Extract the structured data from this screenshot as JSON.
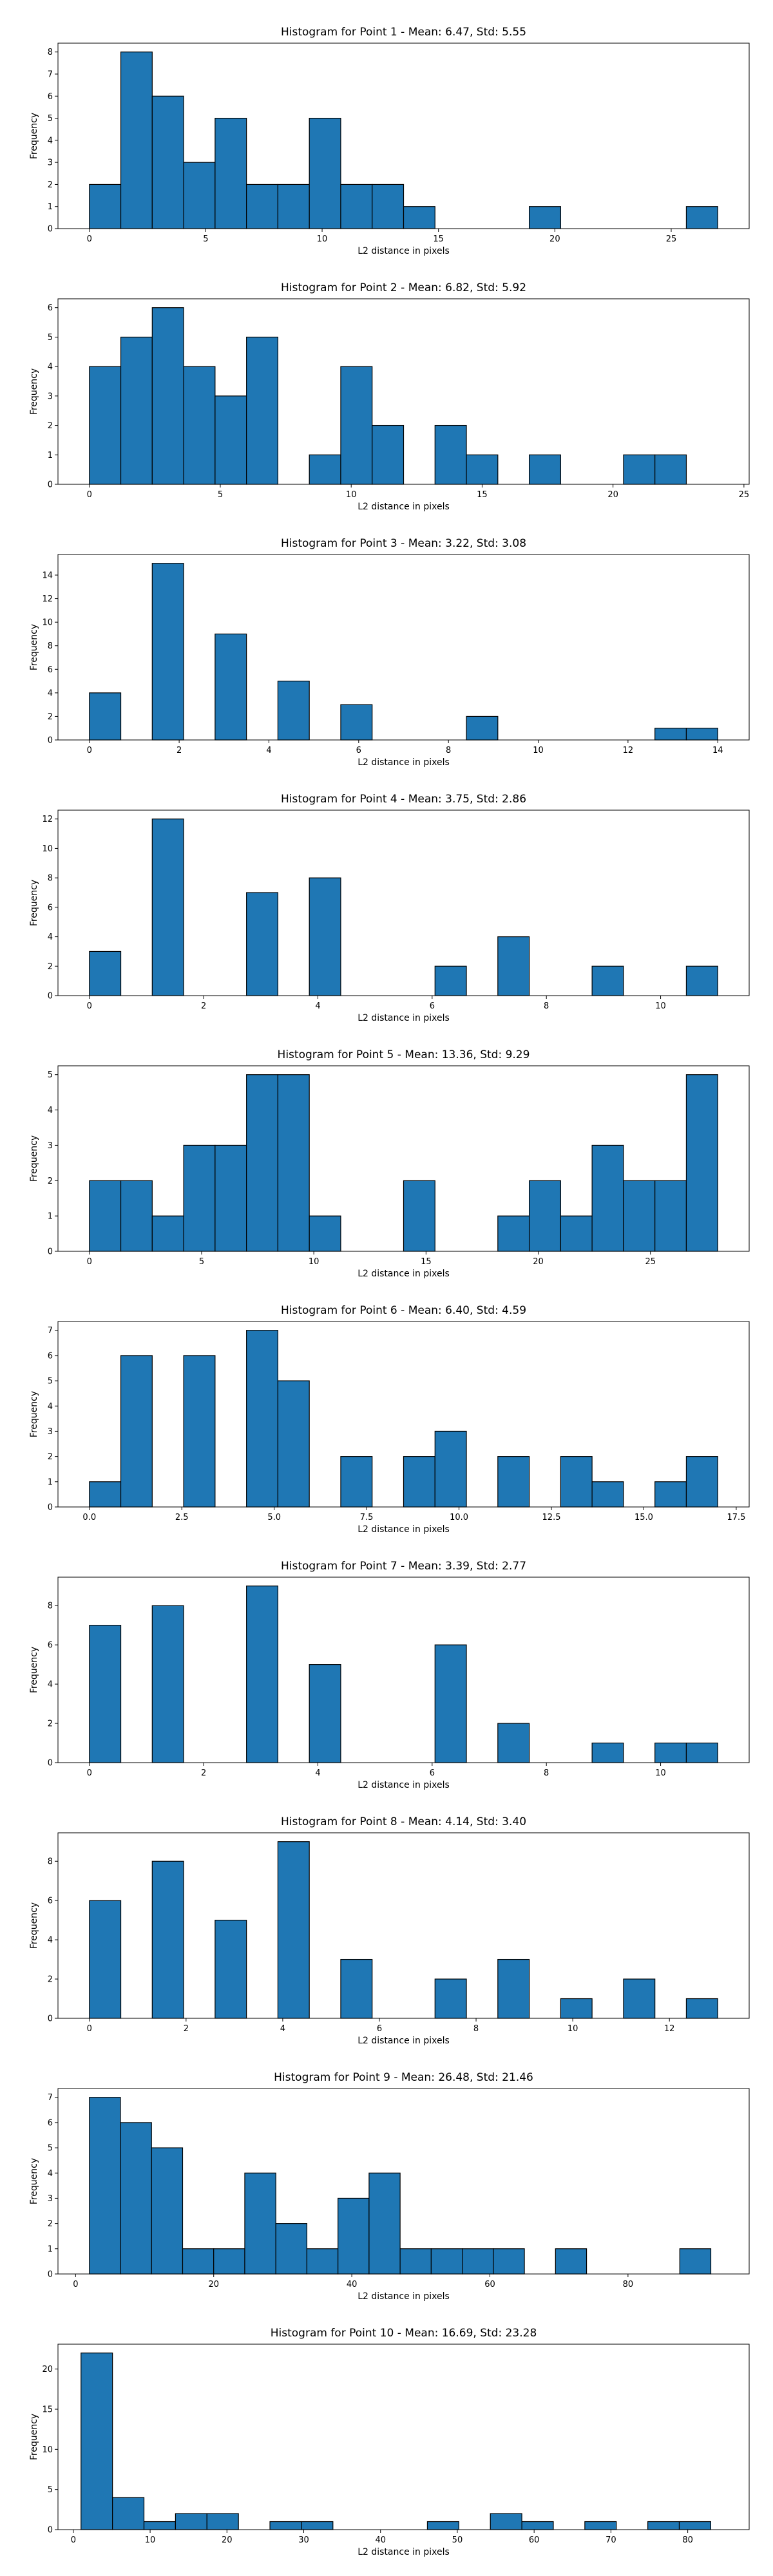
{
  "chart_data": [
    {
      "type": "bar",
      "title": "Histogram for Point 1 - Mean: 6.47, Std: 5.55",
      "xlabel": "L2 distance in pixels",
      "ylabel": "Frequency",
      "xlim": [
        -1.35,
        28.35
      ],
      "ylim": [
        0,
        8.4
      ],
      "xticks": [
        0,
        5,
        10,
        15,
        20,
        25
      ],
      "xtick_labels": [
        "0",
        "5",
        "10",
        "15",
        "20",
        "25"
      ],
      "yticks": [
        0,
        1,
        2,
        3,
        4,
        5,
        6,
        7,
        8
      ],
      "bin_edges": [
        0,
        1.35,
        2.7,
        4.05,
        5.4,
        6.75,
        8.1,
        9.45,
        10.8,
        12.15,
        13.5,
        14.85,
        16.2,
        17.55,
        18.9,
        20.25,
        21.6,
        22.95,
        24.3,
        25.65,
        27.0
      ],
      "values": [
        2,
        8,
        6,
        3,
        5,
        2,
        2,
        5,
        2,
        2,
        1,
        0,
        0,
        0,
        1,
        0,
        0,
        0,
        0,
        1
      ],
      "bar_color": "#1f77b4",
      "edge_color": "#000000",
      "grid": false
    },
    {
      "type": "bar",
      "title": "Histogram for Point 2 - Mean: 6.82, Std: 5.92",
      "xlabel": "L2 distance in pixels",
      "ylabel": "Frequency",
      "xlim": [
        -1.2,
        25.2
      ],
      "ylim": [
        0,
        6.3
      ],
      "xticks": [
        0,
        5,
        10,
        15,
        20,
        25
      ],
      "xtick_labels": [
        "0",
        "5",
        "10",
        "15",
        "20",
        "25"
      ],
      "yticks": [
        0,
        1,
        2,
        3,
        4,
        5,
        6
      ],
      "bin_edges": [
        0,
        1.2,
        2.4,
        3.6,
        4.8,
        6.0,
        7.2,
        8.4,
        9.6,
        10.8,
        12.0,
        13.2,
        14.4,
        15.6,
        16.8,
        18.0,
        19.2,
        20.4,
        21.6,
        22.8,
        24.0
      ],
      "values": [
        4,
        5,
        6,
        4,
        3,
        5,
        0,
        1,
        4,
        2,
        0,
        2,
        1,
        0,
        1,
        0,
        0,
        1,
        1,
        0
      ],
      "bar_color": "#1f77b4",
      "edge_color": "#000000",
      "grid": false
    },
    {
      "type": "bar",
      "title": "Histogram for Point 3 - Mean: 3.22, Std: 3.08",
      "xlabel": "L2 distance in pixels",
      "ylabel": "Frequency",
      "xlim": [
        -0.7,
        14.7
      ],
      "ylim": [
        0,
        15.75
      ],
      "xticks": [
        0,
        2,
        4,
        6,
        8,
        10,
        12,
        14
      ],
      "xtick_labels": [
        "0",
        "2",
        "4",
        "6",
        "8",
        "10",
        "12",
        "14"
      ],
      "yticks": [
        0,
        2,
        4,
        6,
        8,
        10,
        12,
        14
      ],
      "bin_edges": [
        0,
        0.7,
        1.4,
        2.1,
        2.8,
        3.5,
        4.2,
        4.9,
        5.6,
        6.3,
        7.0,
        7.7,
        8.4,
        9.1,
        9.8,
        10.5,
        11.2,
        11.9,
        12.6,
        13.3,
        14.0
      ],
      "values": [
        4,
        0,
        15,
        0,
        9,
        0,
        5,
        0,
        3,
        0,
        0,
        0,
        2,
        0,
        0,
        0,
        0,
        0,
        1,
        1
      ],
      "bar_color": "#1f77b4",
      "edge_color": "#000000",
      "grid": false
    },
    {
      "type": "bar",
      "title": "Histogram for Point 4 - Mean: 3.75, Std: 2.86",
      "xlabel": "L2 distance in pixels",
      "ylabel": "Frequency",
      "xlim": [
        -0.55,
        11.55
      ],
      "ylim": [
        0,
        12.6
      ],
      "xticks": [
        0,
        2,
        4,
        6,
        8,
        10
      ],
      "xtick_labels": [
        "0",
        "2",
        "4",
        "6",
        "8",
        "10"
      ],
      "yticks": [
        0,
        2,
        4,
        6,
        8,
        10,
        12
      ],
      "bin_edges": [
        0,
        0.55,
        1.1,
        1.65,
        2.2,
        2.75,
        3.3,
        3.85,
        4.4,
        4.95,
        5.5,
        6.05,
        6.6,
        7.15,
        7.7,
        8.25,
        8.8,
        9.35,
        9.9,
        10.45,
        11.0
      ],
      "values": [
        3,
        0,
        12,
        0,
        0,
        7,
        0,
        8,
        0,
        0,
        0,
        2,
        0,
        4,
        0,
        0,
        2,
        0,
        0,
        2
      ],
      "bar_color": "#1f77b4",
      "edge_color": "#000000",
      "grid": false
    },
    {
      "type": "bar",
      "title": "Histogram for Point 5 - Mean: 13.36, Std: 9.29",
      "xlabel": "L2 distance in pixels",
      "ylabel": "Frequency",
      "xlim": [
        -1.4,
        29.4
      ],
      "ylim": [
        0,
        5.25
      ],
      "xticks": [
        0,
        5,
        10,
        15,
        20,
        25
      ],
      "xtick_labels": [
        "0",
        "5",
        "10",
        "15",
        "20",
        "25"
      ],
      "yticks": [
        0,
        1,
        2,
        3,
        4,
        5
      ],
      "bin_edges": [
        0,
        1.4,
        2.8,
        4.2,
        5.6,
        7.0,
        8.4,
        9.8,
        11.2,
        12.6,
        14.0,
        15.4,
        16.8,
        18.2,
        19.6,
        21.0,
        22.4,
        23.8,
        25.2,
        26.6,
        28.0
      ],
      "values": [
        2,
        2,
        1,
        3,
        3,
        5,
        5,
        1,
        0,
        0,
        2,
        0,
        0,
        1,
        2,
        1,
        3,
        2,
        2,
        5
      ],
      "bar_color": "#1f77b4",
      "edge_color": "#000000",
      "grid": false
    },
    {
      "type": "bar",
      "title": "Histogram for Point 6 - Mean: 6.40, Std: 4.59",
      "xlabel": "L2 distance in pixels",
      "ylabel": "Frequency",
      "xlim": [
        -0.85,
        17.85
      ],
      "ylim": [
        0,
        7.35
      ],
      "xticks": [
        0,
        2.5,
        5,
        7.5,
        10,
        12.5,
        15,
        17.5
      ],
      "xtick_labels": [
        "0.0",
        "2.5",
        "5.0",
        "7.5",
        "10.0",
        "12.5",
        "15.0",
        "17.5"
      ],
      "yticks": [
        0,
        1,
        2,
        3,
        4,
        5,
        6,
        7
      ],
      "bin_edges": [
        0,
        0.85,
        1.7,
        2.55,
        3.4,
        4.25,
        5.1,
        5.95,
        6.8,
        7.65,
        8.5,
        9.35,
        10.2,
        11.05,
        11.9,
        12.75,
        13.6,
        14.45,
        15.3,
        16.15,
        17.0
      ],
      "values": [
        1,
        6,
        0,
        6,
        0,
        7,
        5,
        0,
        2,
        0,
        2,
        3,
        0,
        2,
        0,
        2,
        1,
        0,
        1,
        2
      ],
      "bar_color": "#1f77b4",
      "edge_color": "#000000",
      "grid": false
    },
    {
      "type": "bar",
      "title": "Histogram for Point 7 - Mean: 3.39, Std: 2.77",
      "xlabel": "L2 distance in pixels",
      "ylabel": "Frequency",
      "xlim": [
        -0.55,
        11.55
      ],
      "ylim": [
        0,
        9.45
      ],
      "xticks": [
        0,
        2,
        4,
        6,
        8,
        10
      ],
      "xtick_labels": [
        "0",
        "2",
        "4",
        "6",
        "8",
        "10"
      ],
      "yticks": [
        0,
        2,
        4,
        6,
        8
      ],
      "bin_edges": [
        0,
        0.55,
        1.1,
        1.65,
        2.2,
        2.75,
        3.3,
        3.85,
        4.4,
        4.95,
        5.5,
        6.05,
        6.6,
        7.15,
        7.7,
        8.25,
        8.8,
        9.35,
        9.9,
        10.45,
        11.0
      ],
      "values": [
        7,
        0,
        8,
        0,
        0,
        9,
        0,
        5,
        0,
        0,
        0,
        6,
        0,
        2,
        0,
        0,
        1,
        0,
        1,
        1
      ],
      "bar_color": "#1f77b4",
      "edge_color": "#000000",
      "grid": false
    },
    {
      "type": "bar",
      "title": "Histogram for Point 8 - Mean: 4.14, Std: 3.40",
      "xlabel": "L2 distance in pixels",
      "ylabel": "Frequency",
      "xlim": [
        -0.65,
        13.65
      ],
      "ylim": [
        0,
        9.45
      ],
      "xticks": [
        0,
        2,
        4,
        6,
        8,
        10,
        12
      ],
      "xtick_labels": [
        "0",
        "2",
        "4",
        "6",
        "8",
        "10",
        "12"
      ],
      "yticks": [
        0,
        2,
        4,
        6,
        8
      ],
      "bin_edges": [
        0,
        0.65,
        1.3,
        1.95,
        2.6,
        3.25,
        3.9,
        4.55,
        5.2,
        5.85,
        6.5,
        7.15,
        7.8,
        8.45,
        9.1,
        9.75,
        10.4,
        11.05,
        11.7,
        12.35,
        13.0
      ],
      "values": [
        6,
        0,
        8,
        0,
        5,
        0,
        9,
        0,
        3,
        0,
        0,
        2,
        0,
        3,
        0,
        1,
        0,
        2,
        0,
        1
      ],
      "bar_color": "#1f77b4",
      "edge_color": "#000000",
      "grid": false
    },
    {
      "type": "bar",
      "title": "Histogram for Point 9 - Mean: 26.48, Std: 21.46",
      "xlabel": "L2 distance in pixels",
      "ylabel": "Frequency",
      "xlim": [
        -2.55,
        97.55
      ],
      "ylim": [
        0,
        7.35
      ],
      "xticks": [
        0,
        20,
        40,
        60,
        80
      ],
      "xtick_labels": [
        "0",
        "20",
        "40",
        "60",
        "80"
      ],
      "yticks": [
        0,
        1,
        2,
        3,
        4,
        5,
        6,
        7
      ],
      "bin_edges": [
        2,
        6.5,
        11,
        15.5,
        20,
        24.5,
        29,
        33.5,
        38,
        42.5,
        47,
        51.5,
        56,
        60.5,
        65,
        69.5,
        74,
        78.5,
        83,
        87.5,
        92
      ],
      "values": [
        7,
        6,
        5,
        1,
        1,
        4,
        2,
        1,
        3,
        4,
        1,
        1,
        1,
        1,
        0,
        1,
        0,
        0,
        0,
        1
      ],
      "bar_color": "#1f77b4",
      "edge_color": "#000000",
      "grid": false
    },
    {
      "type": "bar",
      "title": "Histogram for Point 10 - Mean: 16.69, Std: 23.28",
      "xlabel": "L2 distance in pixels",
      "ylabel": "Frequency",
      "xlim": [
        -2.0,
        88.0
      ],
      "ylim": [
        0,
        23.1
      ],
      "xticks": [
        0,
        10,
        20,
        30,
        40,
        50,
        60,
        70,
        80
      ],
      "xtick_labels": [
        "0",
        "10",
        "20",
        "30",
        "40",
        "50",
        "60",
        "70",
        "80"
      ],
      "yticks": [
        0,
        5,
        10,
        15,
        20
      ],
      "bin_edges": [
        1,
        5.1,
        9.2,
        13.3,
        17.4,
        21.5,
        25.6,
        29.7,
        33.8,
        37.9,
        42,
        46.1,
        50.2,
        54.3,
        58.4,
        62.5,
        66.6,
        70.7,
        74.8,
        78.9,
        83
      ],
      "values": [
        22,
        4,
        1,
        2,
        2,
        0,
        1,
        1,
        0,
        0,
        0,
        1,
        0,
        2,
        1,
        0,
        1,
        0,
        1,
        1
      ],
      "bar_color": "#1f77b4",
      "edge_color": "#000000",
      "grid": false
    }
  ]
}
